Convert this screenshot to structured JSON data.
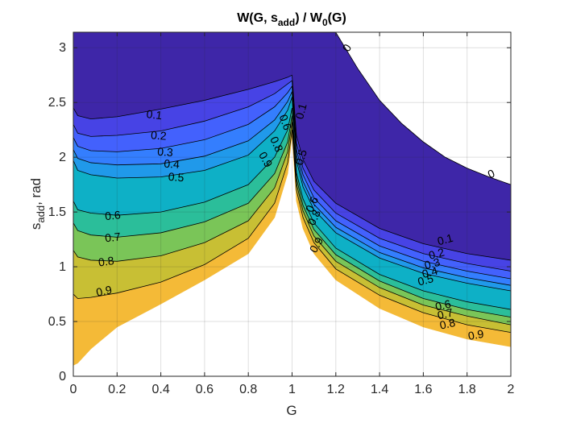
{
  "chart_data": {
    "type": "contourf",
    "title_parts": [
      "W(G, s",
      "add",
      ") / W",
      "0",
      "(G)"
    ],
    "xlabel": "G",
    "ylabel_parts": [
      "s",
      "add",
      ", rad"
    ],
    "xlim": [
      0,
      2
    ],
    "ylim": [
      0,
      3.14159
    ],
    "xticks": [
      "0",
      "0.2",
      "0.4",
      "0.6",
      "0.8",
      "1",
      "1.2",
      "1.4",
      "1.6",
      "1.8",
      "2"
    ],
    "yticks": [
      "0",
      "0.5",
      "1",
      "1.5",
      "2",
      "2.5",
      "3"
    ],
    "grid": true,
    "levels": [
      0,
      0.1,
      0.2,
      0.3,
      0.4,
      0.5,
      0.6,
      0.7,
      0.8,
      0.9,
      1.0
    ],
    "level_colors": [
      "#3e26a8",
      "#4743e5",
      "#4361fd",
      "#347efe",
      "#2099ea",
      "#0eb0c6",
      "#2bbe9a",
      "#7ac558",
      "#c8bf34",
      "#f4ba37",
      "#f9d725"
    ],
    "left_region_level_curves": [
      {
        "level": 0.0,
        "label": "",
        "points": [
          [
            0.0,
            3.1416
          ],
          [
            0.75,
            3.1416
          ],
          [
            0.93,
            3.1416
          ],
          [
            0.98,
            3.1416
          ],
          [
            1.0,
            3.1416
          ]
        ]
      },
      {
        "level": 0.1,
        "label": "0.1",
        "points": [
          [
            0.0,
            2.45
          ],
          [
            0.02,
            2.38
          ],
          [
            0.08,
            2.35
          ],
          [
            0.2,
            2.37
          ],
          [
            0.4,
            2.44
          ],
          [
            0.6,
            2.52
          ],
          [
            0.8,
            2.62
          ],
          [
            0.92,
            2.69
          ],
          [
            0.98,
            2.73
          ],
          [
            1.0,
            2.75
          ]
        ]
      },
      {
        "level": 0.2,
        "label": "0.2",
        "points": [
          [
            0.0,
            2.3
          ],
          [
            0.02,
            2.22
          ],
          [
            0.08,
            2.19
          ],
          [
            0.2,
            2.2
          ],
          [
            0.4,
            2.24
          ],
          [
            0.6,
            2.33
          ],
          [
            0.8,
            2.46
          ],
          [
            0.92,
            2.58
          ],
          [
            0.98,
            2.67
          ],
          [
            1.0,
            2.7
          ]
        ]
      },
      {
        "level": 0.3,
        "label": "0.3",
        "points": [
          [
            0.0,
            2.18
          ],
          [
            0.02,
            2.1
          ],
          [
            0.08,
            2.06
          ],
          [
            0.2,
            2.05
          ],
          [
            0.4,
            2.08
          ],
          [
            0.6,
            2.16
          ],
          [
            0.8,
            2.3
          ],
          [
            0.92,
            2.46
          ],
          [
            0.98,
            2.59
          ],
          [
            1.0,
            2.65
          ]
        ]
      },
      {
        "level": 0.4,
        "label": "0.4",
        "points": [
          [
            0.0,
            2.07
          ],
          [
            0.02,
            1.99
          ],
          [
            0.08,
            1.95
          ],
          [
            0.2,
            1.93
          ],
          [
            0.4,
            1.94
          ],
          [
            0.6,
            2.01
          ],
          [
            0.8,
            2.15
          ],
          [
            0.92,
            2.34
          ],
          [
            0.98,
            2.51
          ],
          [
            1.0,
            2.6
          ]
        ]
      },
      {
        "level": 0.5,
        "label": "0.5",
        "points": [
          [
            0.0,
            1.97
          ],
          [
            0.02,
            1.88
          ],
          [
            0.08,
            1.84
          ],
          [
            0.2,
            1.81
          ],
          [
            0.4,
            1.82
          ],
          [
            0.6,
            1.88
          ],
          [
            0.8,
            2.02
          ],
          [
            0.92,
            2.24
          ],
          [
            0.98,
            2.43
          ],
          [
            1.0,
            2.55
          ]
        ]
      },
      {
        "level": 0.6,
        "label": "0.6",
        "points": [
          [
            0.0,
            1.6
          ],
          [
            0.02,
            1.52
          ],
          [
            0.08,
            1.49
          ],
          [
            0.2,
            1.47
          ],
          [
            0.4,
            1.5
          ],
          [
            0.6,
            1.59
          ],
          [
            0.8,
            1.75
          ],
          [
            0.92,
            2.0
          ],
          [
            0.98,
            2.25
          ],
          [
            1.0,
            2.45
          ]
        ]
      },
      {
        "level": 0.7,
        "label": "0.7",
        "points": [
          [
            0.0,
            1.4
          ],
          [
            0.02,
            1.33
          ],
          [
            0.08,
            1.29
          ],
          [
            0.2,
            1.27
          ],
          [
            0.4,
            1.31
          ],
          [
            0.6,
            1.41
          ],
          [
            0.8,
            1.58
          ],
          [
            0.92,
            1.85
          ],
          [
            0.98,
            2.14
          ],
          [
            1.0,
            2.38
          ]
        ]
      },
      {
        "level": 0.8,
        "label": "0.8",
        "points": [
          [
            0.0,
            1.15
          ],
          [
            0.02,
            1.09
          ],
          [
            0.08,
            1.06
          ],
          [
            0.2,
            1.05
          ],
          [
            0.4,
            1.1
          ],
          [
            0.6,
            1.22
          ],
          [
            0.8,
            1.42
          ],
          [
            0.92,
            1.72
          ],
          [
            0.98,
            2.05
          ],
          [
            1.0,
            2.32
          ]
        ]
      },
      {
        "level": 0.9,
        "label": "0.9",
        "points": [
          [
            0.0,
            0.75
          ],
          [
            0.02,
            0.71
          ],
          [
            0.08,
            0.72
          ],
          [
            0.2,
            0.76
          ],
          [
            0.4,
            0.86
          ],
          [
            0.6,
            1.02
          ],
          [
            0.8,
            1.26
          ],
          [
            0.92,
            1.58
          ],
          [
            0.98,
            1.95
          ],
          [
            1.0,
            2.25
          ]
        ]
      },
      {
        "level": 1.0,
        "label": "",
        "points": [
          [
            0.0,
            0.1
          ],
          [
            0.02,
            0.12
          ],
          [
            0.08,
            0.25
          ],
          [
            0.2,
            0.45
          ],
          [
            0.4,
            0.66
          ],
          [
            0.6,
            0.88
          ],
          [
            0.8,
            1.12
          ],
          [
            0.92,
            1.45
          ],
          [
            0.98,
            1.85
          ],
          [
            1.0,
            2.2
          ]
        ]
      }
    ],
    "right_region_level_curves": [
      {
        "level": 0.0,
        "label": "0",
        "points": [
          [
            1.0,
            3.1416
          ],
          [
            1.2,
            3.14
          ],
          [
            1.3,
            2.81
          ],
          [
            1.4,
            2.52
          ],
          [
            1.5,
            2.31
          ],
          [
            1.6,
            2.14
          ],
          [
            1.7,
            2.0
          ],
          [
            1.8,
            1.9
          ],
          [
            1.9,
            1.82
          ],
          [
            2.0,
            1.75
          ]
        ]
      },
      {
        "level": 0.1,
        "label": "0.1",
        "points": [
          [
            1.0,
            2.75
          ],
          [
            1.02,
            2.2
          ],
          [
            1.05,
            1.98
          ],
          [
            1.1,
            1.78
          ],
          [
            1.2,
            1.58
          ],
          [
            1.4,
            1.35
          ],
          [
            1.6,
            1.21
          ],
          [
            1.8,
            1.12
          ],
          [
            2.0,
            1.06
          ]
        ]
      },
      {
        "level": 0.2,
        "label": "0.2",
        "points": [
          [
            1.0,
            2.7
          ],
          [
            1.02,
            2.13
          ],
          [
            1.05,
            1.9
          ],
          [
            1.1,
            1.7
          ],
          [
            1.2,
            1.49
          ],
          [
            1.4,
            1.26
          ],
          [
            1.6,
            1.12
          ],
          [
            1.8,
            1.03
          ],
          [
            2.0,
            0.96
          ]
        ]
      },
      {
        "level": 0.3,
        "label": "0.3",
        "points": [
          [
            1.0,
            2.65
          ],
          [
            1.02,
            2.07
          ],
          [
            1.05,
            1.84
          ],
          [
            1.1,
            1.63
          ],
          [
            1.2,
            1.42
          ],
          [
            1.4,
            1.19
          ],
          [
            1.6,
            1.05
          ],
          [
            1.8,
            0.96
          ],
          [
            2.0,
            0.89
          ]
        ]
      },
      {
        "level": 0.4,
        "label": "0.4",
        "points": [
          [
            1.0,
            2.6
          ],
          [
            1.02,
            2.02
          ],
          [
            1.05,
            1.78
          ],
          [
            1.1,
            1.57
          ],
          [
            1.2,
            1.36
          ],
          [
            1.4,
            1.13
          ],
          [
            1.6,
            0.99
          ],
          [
            1.8,
            0.9
          ],
          [
            2.0,
            0.83
          ]
        ]
      },
      {
        "level": 0.5,
        "label": "0.5",
        "points": [
          [
            1.0,
            2.55
          ],
          [
            1.02,
            1.97
          ],
          [
            1.05,
            1.73
          ],
          [
            1.1,
            1.52
          ],
          [
            1.2,
            1.31
          ],
          [
            1.4,
            1.08
          ],
          [
            1.6,
            0.94
          ],
          [
            1.8,
            0.85
          ],
          [
            2.0,
            0.78
          ]
        ]
      },
      {
        "level": 0.6,
        "label": "0.6",
        "points": [
          [
            1.0,
            2.45
          ],
          [
            1.02,
            1.86
          ],
          [
            1.05,
            1.62
          ],
          [
            1.1,
            1.4
          ],
          [
            1.2,
            1.17
          ],
          [
            1.4,
            0.93
          ],
          [
            1.6,
            0.78
          ],
          [
            1.8,
            0.68
          ],
          [
            2.0,
            0.61
          ]
        ]
      },
      {
        "level": 0.7,
        "label": "0.7",
        "points": [
          [
            1.0,
            2.38
          ],
          [
            1.02,
            1.81
          ],
          [
            1.05,
            1.56
          ],
          [
            1.1,
            1.34
          ],
          [
            1.2,
            1.11
          ],
          [
            1.4,
            0.87
          ],
          [
            1.6,
            0.71
          ],
          [
            1.8,
            0.61
          ],
          [
            2.0,
            0.54
          ]
        ]
      },
      {
        "level": 0.8,
        "label": "0.8",
        "points": [
          [
            1.0,
            2.32
          ],
          [
            1.02,
            1.76
          ],
          [
            1.05,
            1.51
          ],
          [
            1.1,
            1.28
          ],
          [
            1.2,
            1.05
          ],
          [
            1.4,
            0.81
          ],
          [
            1.6,
            0.65
          ],
          [
            1.8,
            0.55
          ],
          [
            2.0,
            0.47
          ]
        ]
      },
      {
        "level": 0.9,
        "label": "0.9",
        "points": [
          [
            1.0,
            2.25
          ],
          [
            1.02,
            1.7
          ],
          [
            1.05,
            1.45
          ],
          [
            1.1,
            1.22
          ],
          [
            1.2,
            0.98
          ],
          [
            1.4,
            0.74
          ],
          [
            1.6,
            0.58
          ],
          [
            1.8,
            0.47
          ],
          [
            2.0,
            0.4
          ]
        ]
      },
      {
        "level": 1.0,
        "label": "",
        "points": [
          [
            1.0,
            2.2
          ],
          [
            1.02,
            1.6
          ],
          [
            1.05,
            1.35
          ],
          [
            1.1,
            1.12
          ],
          [
            1.2,
            0.88
          ],
          [
            1.4,
            0.62
          ],
          [
            1.6,
            0.45
          ],
          [
            1.8,
            0.34
          ],
          [
            2.0,
            0.27
          ]
        ]
      }
    ],
    "contour_labels": [
      {
        "text": "0.1",
        "x": 0.37,
        "y": 2.39,
        "angle": -6
      },
      {
        "text": "0.2",
        "x": 0.39,
        "y": 2.2,
        "angle": -4
      },
      {
        "text": "0.3",
        "x": 0.42,
        "y": 2.05,
        "angle": -4
      },
      {
        "text": "0.4",
        "x": 0.45,
        "y": 1.94,
        "angle": -4
      },
      {
        "text": "0.5",
        "x": 0.47,
        "y": 1.82,
        "angle": -4
      },
      {
        "text": "0.6",
        "x": 0.18,
        "y": 1.47,
        "angle": 6
      },
      {
        "text": "0.7",
        "x": 0.18,
        "y": 1.27,
        "angle": 6
      },
      {
        "text": "0.8",
        "x": 0.15,
        "y": 1.05,
        "angle": 8
      },
      {
        "text": "0.9",
        "x": 0.14,
        "y": 0.78,
        "angle": 12
      },
      {
        "text": "0.9",
        "x": 0.88,
        "y": 1.98,
        "angle": -60
      },
      {
        "text": "0.8",
        "x": 0.93,
        "y": 2.12,
        "angle": -65
      },
      {
        "text": "0.6",
        "x": 0.97,
        "y": 2.32,
        "angle": -70
      },
      {
        "text": "0",
        "x": 1.25,
        "y": 3.0,
        "angle": 60
      },
      {
        "text": "0.1",
        "x": 1.04,
        "y": 2.42,
        "angle": 75
      },
      {
        "text": "0.5",
        "x": 1.04,
        "y": 2.0,
        "angle": 72
      },
      {
        "text": "0.6",
        "x": 1.09,
        "y": 1.57,
        "angle": 66
      },
      {
        "text": "0.8",
        "x": 1.1,
        "y": 1.45,
        "angle": 64
      },
      {
        "text": "0.9",
        "x": 1.11,
        "y": 1.2,
        "angle": 60
      },
      {
        "text": "0",
        "x": 1.91,
        "y": 1.85,
        "angle": 25
      },
      {
        "text": "0.1",
        "x": 1.7,
        "y": 1.25,
        "angle": 15
      },
      {
        "text": "0.2",
        "x": 1.66,
        "y": 1.12,
        "angle": 15
      },
      {
        "text": "0.3",
        "x": 1.64,
        "y": 1.03,
        "angle": 15
      },
      {
        "text": "0.4",
        "x": 1.63,
        "y": 0.95,
        "angle": 15
      },
      {
        "text": "0.5",
        "x": 1.61,
        "y": 0.88,
        "angle": 15
      },
      {
        "text": "0.6",
        "x": 1.69,
        "y": 0.65,
        "angle": 13
      },
      {
        "text": "0.7",
        "x": 1.7,
        "y": 0.57,
        "angle": 13
      },
      {
        "text": "0.8",
        "x": 1.71,
        "y": 0.48,
        "angle": 12
      },
      {
        "text": "0.9",
        "x": 1.84,
        "y": 0.38,
        "angle": 10
      }
    ]
  }
}
